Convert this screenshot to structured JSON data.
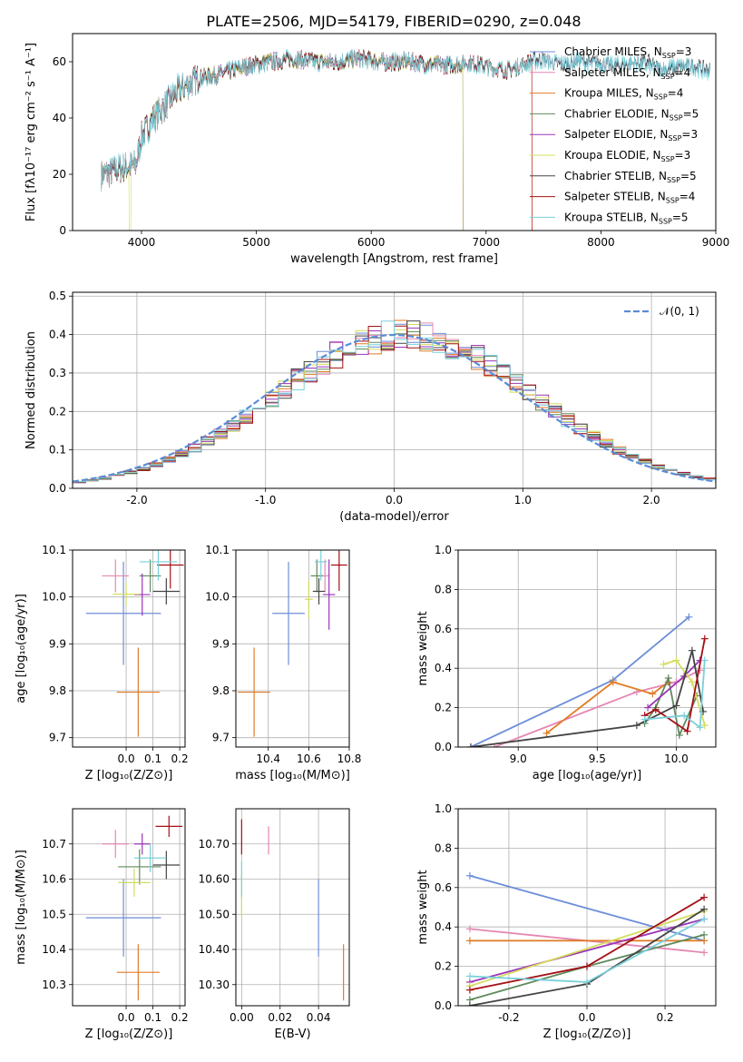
{
  "figure": {
    "title": "PLATE=2506, MJD=54179, FIBERID=0290, z=0.048"
  },
  "chart_data": [
    {
      "id": "spectrum",
      "type": "line",
      "title": "PLATE=2506, MJD=54179, FIBERID=0290, z=0.048",
      "xlabel": "wavelength [Angstrom, rest frame]",
      "ylabel": "Flux [fλ10⁻¹⁷ erg cm⁻² s⁻¹ A⁻¹]",
      "xlim": [
        3400,
        9000
      ],
      "ylim": [
        0,
        70
      ],
      "xticks": [
        4000,
        5000,
        6000,
        7000,
        8000,
        9000
      ],
      "yticks": [
        0,
        20,
        40,
        60
      ],
      "grid": false,
      "legend": "top-right",
      "continuum": {
        "x": [
          3650,
          3800,
          3950,
          4000,
          4100,
          4300,
          4500,
          4700,
          4900,
          5100,
          5300,
          5500,
          5700,
          5900,
          6100,
          6300,
          6500,
          6700,
          6900,
          7100,
          7200,
          7300,
          7400,
          7500,
          7600,
          7700,
          7800,
          7900,
          8000,
          8100,
          8200,
          8300,
          8400,
          8500,
          8600,
          8700,
          8800,
          8900
        ],
        "y": [
          20,
          22,
          23,
          33,
          40,
          49,
          54,
          56,
          58,
          60,
          61,
          60,
          60,
          61,
          60,
          60,
          59,
          59,
          59,
          58,
          57,
          58,
          60,
          61,
          60,
          59,
          60,
          59,
          60,
          59,
          59,
          59,
          59,
          58,
          58,
          58,
          58,
          57
        ]
      },
      "series": [
        {
          "name": "Chabrier MILES, N_SSP=3",
          "color": "#6c8ed9",
          "end_x": 8950
        },
        {
          "name": "Salpeter MILES, N_SSP=4",
          "color": "#e587b3",
          "end_x": 8950
        },
        {
          "name": "Kroupa MILES, N_SSP=4",
          "color": "#e07b25",
          "end_x": 7400
        },
        {
          "name": "Chabrier ELODIE, N_SSP=5",
          "color": "#5f8a5c",
          "end_x": 6800
        },
        {
          "name": "Salpeter ELODIE, N_SSP=3",
          "color": "#9a35b8",
          "end_x": 6800
        },
        {
          "name": "Kroupa ELODIE, N_SSP=3",
          "color": "#d4dc5c",
          "end_x": 6800
        },
        {
          "name": "Chabrier STELIB, N_SSP=5",
          "color": "#444444",
          "end_x": 8950
        },
        {
          "name": "Salpeter STELIB, N_SSP=4",
          "color": "#a50f15",
          "end_x": 7400
        },
        {
          "name": "Kroupa STELIB, N_SSP=5",
          "color": "#79d0da",
          "end_x": 8950
        }
      ]
    },
    {
      "id": "residuals",
      "type": "line",
      "xlabel": "(data-model)/error",
      "ylabel": "Normed distribution",
      "xlim": [
        -2.5,
        2.5
      ],
      "ylim": [
        0,
        0.51
      ],
      "xticks": [
        -2,
        -1,
        0,
        1,
        2
      ],
      "yticks": [
        0.0,
        0.1,
        0.2,
        0.3,
        0.4,
        0.5
      ],
      "grid": true,
      "legend": "top-right",
      "gaussian": {
        "name": "𝒩(0, 1)",
        "color": "#5b8bd6",
        "mean": 0,
        "sigma": 1
      },
      "bin_width": 0.1
    },
    {
      "id": "age-vs-Z",
      "type": "scatter",
      "xlabel": "Z [log₁₀(Z/Z⊙)]",
      "ylabel": "age  [log₁₀(age/yr)]",
      "xlim": [
        -0.2,
        0.22
      ],
      "ylim": [
        9.68,
        10.1
      ],
      "xticks": [
        0.0,
        0.1,
        0.2
      ],
      "yticks": [
        9.7,
        9.8,
        9.9,
        10.0,
        10.1
      ],
      "grid": true,
      "points": [
        {
          "color": "#6c8ed9",
          "x": -0.01,
          "xerr": 0.14,
          "y": 9.965,
          "yerr": 0.11
        },
        {
          "color": "#e587b3",
          "x": -0.04,
          "xerr": 0.05,
          "y": 10.045,
          "yerr": 0.035
        },
        {
          "color": "#e07b25",
          "x": 0.045,
          "xerr": 0.08,
          "y": 9.797,
          "yerr": 0.095
        },
        {
          "color": "#5f8a5c",
          "x": 0.09,
          "xerr": 0.04,
          "y": 10.045,
          "yerr": 0.035
        },
        {
          "color": "#9a35b8",
          "x": 0.06,
          "xerr": 0.03,
          "y": 10.005,
          "yerr": 0.045
        },
        {
          "color": "#d4dc5c",
          "x": 0.0,
          "xerr": 0.05,
          "y": 10.006,
          "yerr": 0.025
        },
        {
          "color": "#444444",
          "x": 0.15,
          "xerr": 0.05,
          "y": 10.012,
          "yerr": 0.028
        },
        {
          "color": "#a50f15",
          "x": 0.165,
          "xerr": 0.05,
          "y": 10.068,
          "yerr": 0.05
        },
        {
          "color": "#79d0da",
          "x": 0.12,
          "xerr": 0.07,
          "y": 10.075,
          "yerr": 0.04
        }
      ]
    },
    {
      "id": "age-vs-mass",
      "type": "scatter",
      "xlabel": "mass [log₁₀(M/M⊙)]",
      "ylabel": "",
      "xlim": [
        10.24,
        10.8
      ],
      "ylim": [
        9.68,
        10.1
      ],
      "xticks": [
        10.4,
        10.6,
        10.8
      ],
      "yticks": [
        9.7,
        9.8,
        9.9,
        10.0,
        10.1
      ],
      "grid": true,
      "points": [
        {
          "color": "#6c8ed9",
          "x": 10.5,
          "xerr": 0.08,
          "y": 9.965,
          "yerr": 0.11
        },
        {
          "color": "#e587b3",
          "x": 10.68,
          "xerr": 0.02,
          "y": 10.045,
          "yerr": 0.035
        },
        {
          "color": "#e07b25",
          "x": 10.33,
          "xerr": 0.08,
          "y": 9.797,
          "yerr": 0.095
        },
        {
          "color": "#5f8a5c",
          "x": 10.64,
          "xerr": 0.03,
          "y": 10.045,
          "yerr": 0.035
        },
        {
          "color": "#9a35b8",
          "x": 10.7,
          "xerr": 0.03,
          "y": 10.005,
          "yerr": 0.075
        },
        {
          "color": "#d4dc5c",
          "x": 10.6,
          "xerr": 0.02,
          "y": 9.995,
          "yerr": 0.04
        },
        {
          "color": "#444444",
          "x": 10.65,
          "xerr": 0.03,
          "y": 10.012,
          "yerr": 0.028
        },
        {
          "color": "#a50f15",
          "x": 10.75,
          "xerr": 0.04,
          "y": 10.068,
          "yerr": 0.055
        },
        {
          "color": "#79d0da",
          "x": 10.66,
          "xerr": 0.03,
          "y": 10.075,
          "yerr": 0.04
        }
      ]
    },
    {
      "id": "mass-weight-vs-age",
      "type": "line",
      "xlabel": "age  [log₁₀(age/yr)]",
      "ylabel": "mass weight",
      "xlim": [
        8.62,
        10.25
      ],
      "ylim": [
        0,
        1
      ],
      "xticks": [
        9.0,
        9.5,
        10.0
      ],
      "yticks": [
        0.0,
        0.2,
        0.4,
        0.6,
        0.8,
        1.0
      ],
      "grid": true,
      "series": [
        {
          "color": "#6c8ed9",
          "x": [
            8.7,
            9.6,
            10.08
          ],
          "y": [
            0.0,
            0.34,
            0.66
          ]
        },
        {
          "color": "#e587b3",
          "x": [
            8.85,
            9.75,
            10.0,
            10.15
          ],
          "y": [
            0.0,
            0.28,
            0.33,
            0.39
          ]
        },
        {
          "color": "#e07b25",
          "x": [
            9.18,
            9.6,
            9.85,
            9.95
          ],
          "y": [
            0.07,
            0.33,
            0.27,
            0.33
          ]
        },
        {
          "color": "#5f8a5c",
          "x": [
            9.8,
            9.87,
            9.95,
            10.02,
            10.13
          ],
          "y": [
            0.12,
            0.2,
            0.35,
            0.06,
            0.26
          ]
        },
        {
          "color": "#9a35b8",
          "x": [
            9.82,
            10.05,
            10.15
          ],
          "y": [
            0.2,
            0.36,
            0.44
          ]
        },
        {
          "color": "#d4dc5c",
          "x": [
            9.92,
            10.0,
            10.1,
            10.18
          ],
          "y": [
            0.42,
            0.44,
            0.33,
            0.11
          ]
        },
        {
          "color": "#444444",
          "x": [
            8.7,
            9.75,
            10.0,
            10.1,
            10.17
          ],
          "y": [
            0.0,
            0.11,
            0.21,
            0.49,
            0.18
          ]
        },
        {
          "color": "#a50f15",
          "x": [
            9.8,
            9.87,
            10.07,
            10.18
          ],
          "y": [
            0.16,
            0.19,
            0.08,
            0.55
          ]
        },
        {
          "color": "#79d0da",
          "x": [
            9.8,
            10.05,
            10.15,
            10.18
          ],
          "y": [
            0.14,
            0.16,
            0.1,
            0.44
          ]
        }
      ]
    },
    {
      "id": "mass-vs-Z",
      "type": "scatter",
      "xlabel": "Z [log₁₀(Z/Z⊙)]",
      "ylabel": "mass [log₁₀(M/M⊙)]",
      "xlim": [
        -0.2,
        0.22
      ],
      "ylim": [
        10.24,
        10.8
      ],
      "xticks": [
        0.0,
        0.1,
        0.2
      ],
      "yticks": [
        10.3,
        10.4,
        10.5,
        10.6,
        10.7
      ],
      "grid": true,
      "points": [
        {
          "color": "#6c8ed9",
          "x": -0.01,
          "xerr": 0.14,
          "y": 10.49,
          "yerr": 0.11
        },
        {
          "color": "#e587b3",
          "x": -0.04,
          "xerr": 0.05,
          "y": 10.7,
          "yerr": 0.04
        },
        {
          "color": "#e07b25",
          "x": 0.045,
          "xerr": 0.08,
          "y": 10.335,
          "yerr": 0.08
        },
        {
          "color": "#5f8a5c",
          "x": 0.05,
          "xerr": 0.08,
          "y": 10.635,
          "yerr": 0.05
        },
        {
          "color": "#9a35b8",
          "x": 0.06,
          "xerr": 0.03,
          "y": 10.7,
          "yerr": 0.03
        },
        {
          "color": "#d4dc5c",
          "x": 0.03,
          "xerr": 0.06,
          "y": 10.59,
          "yerr": 0.04
        },
        {
          "color": "#444444",
          "x": 0.15,
          "xerr": 0.05,
          "y": 10.64,
          "yerr": 0.04
        },
        {
          "color": "#a50f15",
          "x": 0.16,
          "xerr": 0.05,
          "y": 10.75,
          "yerr": 0.03
        },
        {
          "color": "#79d0da",
          "x": 0.09,
          "xerr": 0.06,
          "y": 10.66,
          "yerr": 0.04
        }
      ]
    },
    {
      "id": "mass-vs-ebv",
      "type": "scatter",
      "xlabel": "E(B-V)",
      "ylabel": "",
      "xlim": [
        -0.003,
        0.056
      ],
      "ylim": [
        10.24,
        10.8
      ],
      "xticks": [
        0.0,
        0.02,
        0.04
      ],
      "yticks": [
        10.3,
        10.4,
        10.5,
        10.6,
        10.7
      ],
      "grid": true,
      "points": [
        {
          "color": "#6c8ed9",
          "x": 0.04,
          "xerr": 0,
          "y": 10.49,
          "yerr": 0.11
        },
        {
          "color": "#e587b3",
          "x": 0.014,
          "xerr": 0,
          "y": 10.71,
          "yerr": 0.04
        },
        {
          "color": "#e07b25",
          "x": 0.053,
          "xerr": 0,
          "y": 10.335,
          "yerr": 0.08
        },
        {
          "color": "#d4dc5c",
          "x": 0.0,
          "xerr": 0,
          "y": 10.55,
          "yerr": 0.06
        },
        {
          "color": "#a50f15",
          "x": 0.0,
          "xerr": 0,
          "y": 10.72,
          "yerr": 0.05
        },
        {
          "color": "#79d0da",
          "x": 0.0,
          "xerr": 0,
          "y": 10.6,
          "yerr": 0.05
        }
      ]
    },
    {
      "id": "mass-weight-vs-Z",
      "type": "line",
      "xlabel": "Z [log₁₀(Z/Z⊙)]",
      "ylabel": "mass weight",
      "xlim": [
        -0.33,
        0.33
      ],
      "ylim": [
        0,
        1
      ],
      "xticks": [
        -0.2,
        0.0,
        0.2
      ],
      "yticks": [
        0.0,
        0.2,
        0.4,
        0.6,
        0.8,
        1.0
      ],
      "grid": true,
      "series": [
        {
          "color": "#6c8ed9",
          "x": [
            -0.3,
            0.3
          ],
          "y": [
            0.66,
            0.33
          ]
        },
        {
          "color": "#e587b3",
          "x": [
            -0.3,
            0.3
          ],
          "y": [
            0.39,
            0.27
          ]
        },
        {
          "color": "#e07b25",
          "x": [
            -0.3,
            0.3
          ],
          "y": [
            0.33,
            0.33
          ]
        },
        {
          "color": "#5f8a5c",
          "x": [
            -0.3,
            0.0,
            0.3
          ],
          "y": [
            0.03,
            0.2,
            0.36
          ]
        },
        {
          "color": "#9a35b8",
          "x": [
            -0.3,
            0.3
          ],
          "y": [
            0.12,
            0.44
          ]
        },
        {
          "color": "#d4dc5c",
          "x": [
            -0.3,
            0.3
          ],
          "y": [
            0.1,
            0.48
          ]
        },
        {
          "color": "#444444",
          "x": [
            -0.3,
            0.0,
            0.3
          ],
          "y": [
            0.0,
            0.11,
            0.49
          ]
        },
        {
          "color": "#a50f15",
          "x": [
            -0.3,
            0.0,
            0.3
          ],
          "y": [
            0.08,
            0.2,
            0.55
          ]
        },
        {
          "color": "#79d0da",
          "x": [
            -0.3,
            0.0,
            0.3
          ],
          "y": [
            0.15,
            0.12,
            0.44
          ]
        }
      ]
    }
  ]
}
